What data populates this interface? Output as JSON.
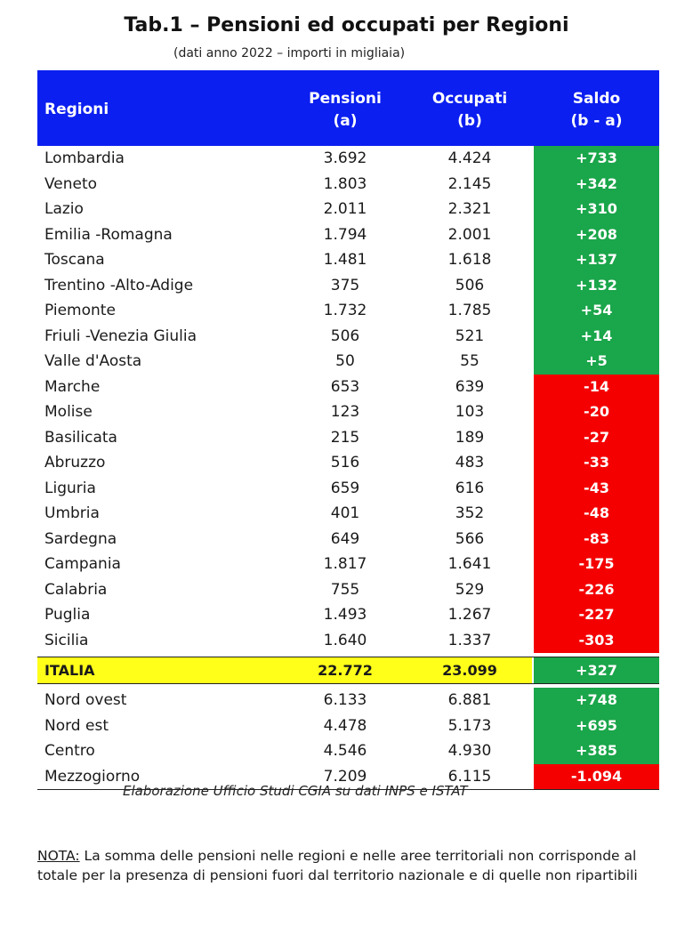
{
  "title": "Tab.1 – Pensioni ed occupati per Regioni",
  "subtitle": "(dati anno 2022 – importi in migliaia)",
  "header": {
    "regioni": "Regioni",
    "pensioni_1": "Pensioni",
    "pensioni_2": "(a)",
    "occupati_1": "Occupati",
    "occupati_2": "(b)",
    "saldo_1": "Saldo",
    "saldo_2": "(b - a)"
  },
  "regions": [
    {
      "name": "Lombardia",
      "pensioni": "3.692",
      "occupati": "4.424",
      "saldo": "+733"
    },
    {
      "name": "Veneto",
      "pensioni": "1.803",
      "occupati": "2.145",
      "saldo": "+342"
    },
    {
      "name": "Lazio",
      "pensioni": "2.011",
      "occupati": "2.321",
      "saldo": "+310"
    },
    {
      "name": "Emilia -Romagna",
      "pensioni": "1.794",
      "occupati": "2.001",
      "saldo": "+208"
    },
    {
      "name": "Toscana",
      "pensioni": "1.481",
      "occupati": "1.618",
      "saldo": "+137"
    },
    {
      "name": "Trentino -Alto-Adige",
      "pensioni": "375",
      "occupati": "506",
      "saldo": "+132"
    },
    {
      "name": "Piemonte",
      "pensioni": "1.732",
      "occupati": "1.785",
      "saldo": "+54"
    },
    {
      "name": "Friuli -Venezia Giulia",
      "pensioni": "506",
      "occupati": "521",
      "saldo": "+14"
    },
    {
      "name": "Valle d'Aosta",
      "pensioni": "50",
      "occupati": "55",
      "saldo": "+5"
    },
    {
      "name": "Marche",
      "pensioni": "653",
      "occupati": "639",
      "saldo": "-14"
    },
    {
      "name": "Molise",
      "pensioni": "123",
      "occupati": "103",
      "saldo": "-20"
    },
    {
      "name": "Basilicata",
      "pensioni": "215",
      "occupati": "189",
      "saldo": "-27"
    },
    {
      "name": "Abruzzo",
      "pensioni": "516",
      "occupati": "483",
      "saldo": "-33"
    },
    {
      "name": "Liguria",
      "pensioni": "659",
      "occupati": "616",
      "saldo": "-43"
    },
    {
      "name": "Umbria",
      "pensioni": "401",
      "occupati": "352",
      "saldo": "-48"
    },
    {
      "name": "Sardegna",
      "pensioni": "649",
      "occupati": "566",
      "saldo": "-83"
    },
    {
      "name": "Campania",
      "pensioni": "1.817",
      "occupati": "1.641",
      "saldo": "-175"
    },
    {
      "name": "Calabria",
      "pensioni": "755",
      "occupati": "529",
      "saldo": "-226"
    },
    {
      "name": "Puglia",
      "pensioni": "1.493",
      "occupati": "1.267",
      "saldo": "-227"
    },
    {
      "name": "Sicilia",
      "pensioni": "1.640",
      "occupati": "1.337",
      "saldo": "-303"
    }
  ],
  "italia": {
    "name": "ITALIA",
    "pensioni": "22.772",
    "occupati": "23.099",
    "saldo": "+327"
  },
  "areas": [
    {
      "name": "Nord ovest",
      "pensioni": "6.133",
      "occupati": "6.881",
      "saldo": "+748"
    },
    {
      "name": "Nord est",
      "pensioni": "4.478",
      "occupati": "5.173",
      "saldo": "+695"
    },
    {
      "name": "Centro",
      "pensioni": "4.546",
      "occupati": "4.930",
      "saldo": "+385"
    },
    {
      "name": "Mezzogiorno",
      "pensioni": "7.209",
      "occupati": "6.115",
      "saldo": "-1.094"
    }
  ],
  "colors": {
    "header_bg": "#0b1ff0",
    "positive": "#1aa64a",
    "negative": "#f40000",
    "total_highlight": "#ffff1a"
  },
  "source": "Elaborazione Ufficio Studi CGIA su dati INPS e ISTAT",
  "note": {
    "label": "NOTA:",
    "text": " La somma delle pensioni nelle regioni e nelle aree territoriali non corrisponde al totale per la presenza di pensioni fuori dal territorio nazionale e di quelle non ripartibili"
  }
}
